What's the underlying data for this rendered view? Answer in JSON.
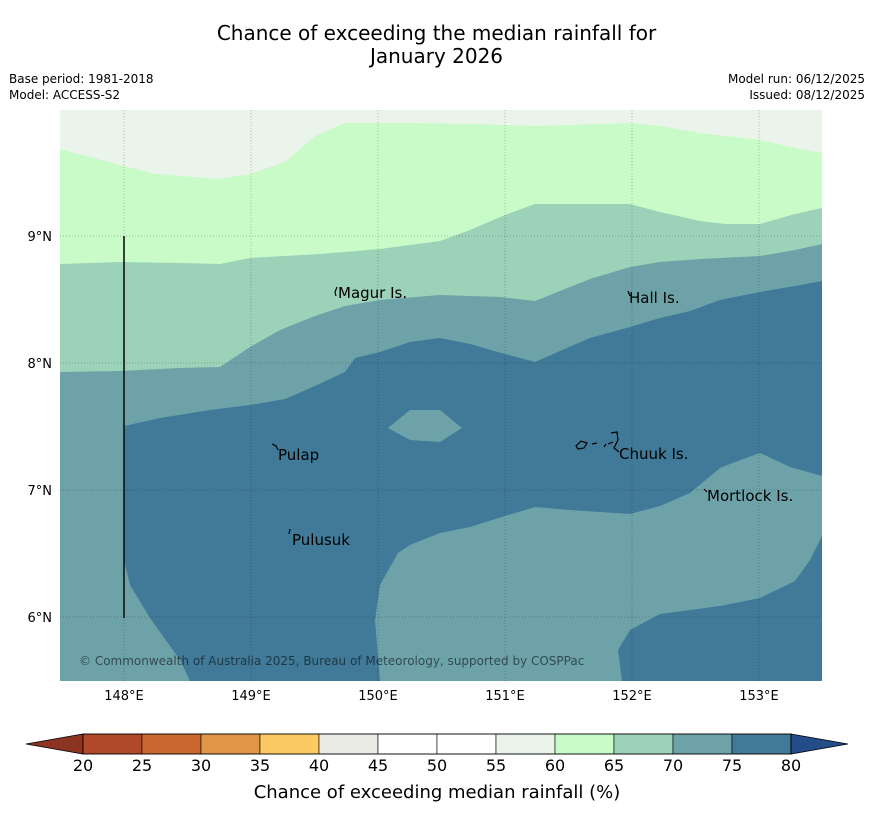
{
  "header": {
    "title_line1": "Chance of exceeding the median rainfall for",
    "title_line2": "January 2026",
    "base_period": "Base period: 1981-2018",
    "model": "Model: ACCESS-S2",
    "model_run": "Model run: 06/12/2025",
    "issued": "Issued: 08/12/2025"
  },
  "map": {
    "lon_range": [
      147.5,
      153.5
    ],
    "lat_range": [
      5.5,
      10.0
    ],
    "lon_ticks": [
      {
        "value": 148,
        "label": "148°E"
      },
      {
        "value": 149,
        "label": "149°E"
      },
      {
        "value": 150,
        "label": "150°E"
      },
      {
        "value": 151,
        "label": "151°E"
      },
      {
        "value": 152,
        "label": "152°E"
      },
      {
        "value": 153,
        "label": "153°E"
      }
    ],
    "lat_ticks": [
      {
        "value": 9,
        "label": "9°N"
      },
      {
        "value": 8,
        "label": "8°N"
      },
      {
        "value": 7,
        "label": "7°N"
      },
      {
        "value": 6,
        "label": "6°N"
      }
    ],
    "places": [
      {
        "name": "Magur Is.",
        "lon": 149.67,
        "lat": 8.58
      },
      {
        "name": "Hall Is.",
        "lon": 151.97,
        "lat": 8.55
      },
      {
        "name": "Pulap",
        "lon": 149.18,
        "lat": 7.35
      },
      {
        "name": "Chuuk Is.",
        "lon": 151.82,
        "lat": 7.35
      },
      {
        "name": "Mortlock Is.",
        "lon": 152.58,
        "lat": 7.0
      },
      {
        "name": "Pulusuk",
        "lon": 149.3,
        "lat": 6.67
      }
    ],
    "copyright": "© Commonwealth of Australia 2025, Bureau of Meteorology, supported by COSPPac"
  },
  "colorbar": {
    "title": "Chance of exceeding median rainfall (%)",
    "ticks": [
      "20",
      "25",
      "30",
      "35",
      "40",
      "45",
      "50",
      "55",
      "60",
      "65",
      "70",
      "75",
      "80"
    ],
    "colors": [
      "#b1482a",
      "#cd6732",
      "#e19647",
      "#fcca63",
      "#ebebe6",
      "#ffffff",
      "#ffffff",
      "#eaf4ea",
      "#c8fbc8",
      "#9cd2b8",
      "#6da3a8",
      "#407a98"
    ],
    "under_color": "#8c3321",
    "over_color": "#234d88"
  },
  "colors": {
    "c55_60": "#eaf4ea",
    "c60_65": "#c8fbc8",
    "c65_70": "#9cd2b8",
    "c70_75": "#6da3a8",
    "c75_80": "#407a98"
  }
}
